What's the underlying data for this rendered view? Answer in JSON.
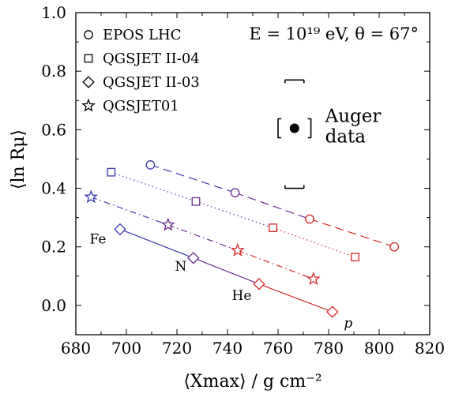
{
  "chart_data": {
    "type": "scatter",
    "xlabel": "⟨Xmax⟩ / g cm⁻²",
    "ylabel": "⟨ln Rμ⟩",
    "xlim": [
      680,
      820
    ],
    "ylim": [
      -0.1,
      1.0
    ],
    "x_ticks": [
      "680",
      "700",
      "720",
      "740",
      "760",
      "780",
      "800",
      "820"
    ],
    "y_ticks": [
      "0.0",
      "0.2",
      "0.4",
      "0.6",
      "0.8",
      "1.0"
    ],
    "condition": "E = 10¹⁹ eV, θ = 67°",
    "legend_position": "top-left",
    "primaries": [
      "p",
      "He",
      "N",
      "Fe"
    ],
    "primary_colors": [
      "#d62728",
      "#d62728",
      "#6a2a8a",
      "#3a3ab0"
    ],
    "series": [
      {
        "name": "EPOS LHC",
        "marker": "circle",
        "line": "dashed",
        "x": [
          709.5,
          743,
          772.5,
          806
        ],
        "y": [
          0.48,
          0.385,
          0.295,
          0.2
        ]
      },
      {
        "name": "QGSJET II-04",
        "marker": "square",
        "line": "dotted",
        "x": [
          694,
          727.5,
          758,
          790.5
        ],
        "y": [
          0.455,
          0.355,
          0.265,
          0.165
        ]
      },
      {
        "name": "QGSJET II-03",
        "marker": "diamond",
        "line": "solid",
        "x": [
          697.5,
          726.5,
          752.5,
          781.5
        ],
        "y": [
          0.26,
          0.162,
          0.073,
          -0.022
        ]
      },
      {
        "name": "QGSJET01",
        "marker": "star",
        "line": "dashdot",
        "x": [
          686,
          716.5,
          744,
          774
        ],
        "y": [
          0.37,
          0.275,
          0.188,
          0.09
        ]
      }
    ],
    "auger": {
      "label": [
        "Auger",
        "data"
      ],
      "x": 766.5,
      "y": 0.605,
      "stat_x": [
        760,
        773
      ],
      "sys_y": [
        0.4,
        0.77
      ]
    }
  }
}
